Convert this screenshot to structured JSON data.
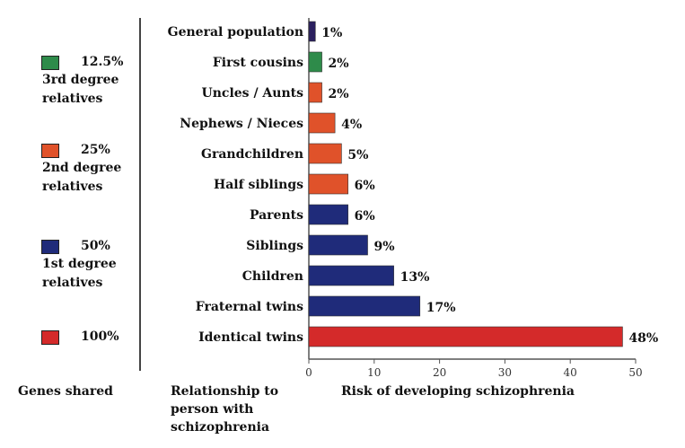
{
  "legend": [
    {
      "percent": "12.5%",
      "description": [
        "3rd degree",
        "relatives"
      ],
      "color": "#2e8b4a"
    },
    {
      "percent": "25%",
      "description": [
        "2nd degree",
        "relatives"
      ],
      "color": "#e0522a"
    },
    {
      "percent": "50%",
      "description": [
        "1st degree",
        "relatives"
      ],
      "color": "#1f2b7a"
    },
    {
      "percent": "100%",
      "description": [],
      "color": "#d42a2a"
    }
  ],
  "footer": {
    "genes_label": "Genes shared",
    "relationship_label": [
      "Relationship to",
      "person with",
      "schizophrenia"
    ]
  },
  "chart_data": {
    "type": "bar",
    "orientation": "horizontal",
    "categories": [
      "General population",
      "First cousins",
      "Uncles / Aunts",
      "Nephews / Nieces",
      "Grandchildren",
      "Half siblings",
      "Parents",
      "Siblings",
      "Children",
      "Fraternal twins",
      "Identical twins"
    ],
    "values": [
      1,
      2,
      2,
      4,
      5,
      6,
      6,
      9,
      13,
      17,
      48
    ],
    "value_labels": [
      "1%",
      "2%",
      "2%",
      "4%",
      "5%",
      "6%",
      "6%",
      "9%",
      "13%",
      "17%",
      "48%"
    ],
    "colors": [
      "#2a1f5e",
      "#2e8b4a",
      "#e0522a",
      "#e0522a",
      "#e0522a",
      "#e0522a",
      "#1f2b7a",
      "#1f2b7a",
      "#1f2b7a",
      "#1f2b7a",
      "#d42a2a"
    ],
    "xlabel": "Risk of developing schizophrenia",
    "xlim": [
      0,
      50
    ],
    "xticks": [
      0,
      10,
      20,
      30,
      40,
      50
    ],
    "grid": false
  }
}
